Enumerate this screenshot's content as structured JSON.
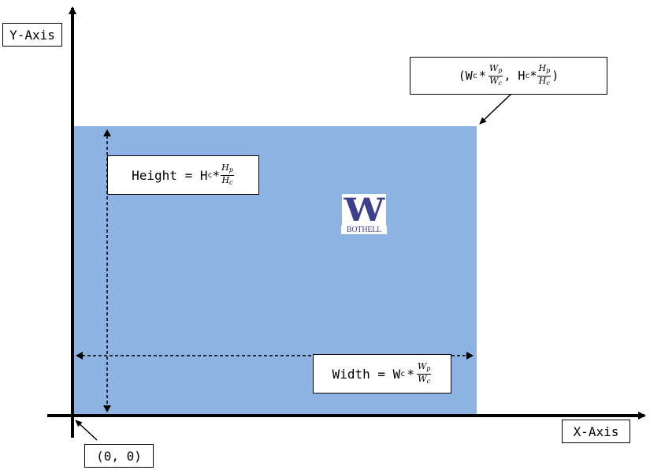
{
  "axes": {
    "y_label": "Y-Axis",
    "x_label": "X-Axis",
    "origin_label": "(0, 0)"
  },
  "corner_label": {
    "open": "(",
    "w_letter": "W",
    "sub_c": "c",
    "op": "*",
    "wp_num": "W",
    "wp_num_sub": "p",
    "wc_den": "W",
    "wc_den_sub": "c",
    "sep": ", ",
    "h_letter": "H",
    "hp_num": "H",
    "hp_num_sub": "p",
    "hc_den": "H",
    "hc_den_sub": "c",
    "close": ")"
  },
  "height_label": {
    "prefix": "Height = H",
    "sub_c": "c",
    "op": "*",
    "num": "H",
    "num_sub": "p",
    "den": "H",
    "den_sub": "c"
  },
  "width_label": {
    "prefix": "Width = W",
    "sub_c": "c",
    "op": "*",
    "num": "W",
    "num_sub": "p",
    "den": "W",
    "den_sub": "c"
  },
  "logo": {
    "letter": "W",
    "text": "BOTHELL",
    "color": "#3b3f8c"
  },
  "colors": {
    "canvas_fill": "#8db3e2",
    "axis": "#000000"
  }
}
